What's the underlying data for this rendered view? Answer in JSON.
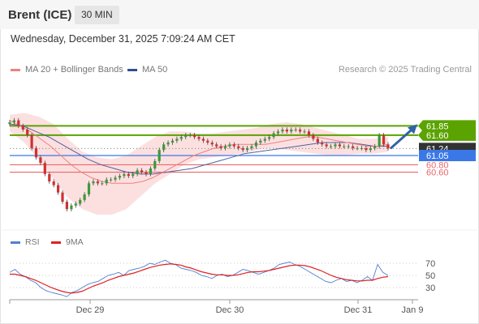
{
  "header": {
    "title": "Brent (ICE)",
    "interval": "30 MIN",
    "datetime": "Wednesday, December 31, 2025 7:09:24 AM CET"
  },
  "legend": {
    "ma20": "MA 20 + Bollinger Bands",
    "ma50": "MA 50",
    "source": "Research © 2025 Trading Central"
  },
  "rsi_legend": {
    "rsi": "RSI",
    "ma9": "9MA"
  },
  "colors": {
    "resistance": "#5aa300",
    "support": "#3b78e7",
    "minor_support": "#e8686a",
    "current": "#333333",
    "ma20": "#f08080",
    "ma50": "#5060a0",
    "bollinger": "#fbd6d6",
    "candle_up": "#3a9a3a",
    "candle_down": "#d03030",
    "arrow": "#2f62a8",
    "rsi": "#5080d0",
    "rsi_ma": "#e02020"
  },
  "chart_data": [
    {
      "type": "candlestick",
      "instrument": "Brent (ICE)",
      "interval": "30 MIN",
      "x_ticks": [
        "Dec 29",
        "Dec 30",
        "Dec 31",
        "Jan 9"
      ],
      "ylim": [
        59.3,
        62.8
      ],
      "levels": [
        {
          "label": "61.85",
          "value": 61.85,
          "kind": "resistance"
        },
        {
          "label": "61.60",
          "value": 61.6,
          "kind": "resistance"
        },
        {
          "label": "61.24",
          "value": 61.24,
          "kind": "current"
        },
        {
          "label": "61.05",
          "value": 61.05,
          "kind": "support"
        },
        {
          "label": "60.80",
          "value": 60.8,
          "kind": "minor_support"
        },
        {
          "label": "60.60",
          "value": 60.6,
          "kind": "minor_support"
        }
      ],
      "close": [
        61.95,
        62.0,
        61.85,
        61.75,
        61.6,
        61.25,
        61.0,
        60.85,
        60.55,
        60.35,
        60.25,
        60.05,
        59.8,
        59.6,
        59.7,
        59.75,
        59.85,
        60.0,
        60.3,
        60.35,
        60.3,
        60.3,
        60.4,
        60.4,
        60.45,
        60.5,
        60.55,
        60.5,
        60.55,
        60.65,
        60.6,
        60.55,
        60.7,
        60.9,
        61.2,
        61.35,
        61.4,
        61.45,
        61.5,
        61.55,
        61.6,
        61.6,
        61.55,
        61.5,
        61.45,
        61.4,
        61.35,
        61.3,
        61.25,
        61.3,
        61.35,
        61.3,
        61.25,
        61.2,
        61.25,
        61.3,
        61.4,
        61.45,
        61.5,
        61.55,
        61.65,
        61.7,
        61.75,
        61.7,
        61.75,
        61.75,
        61.7,
        61.7,
        61.6,
        61.5,
        61.4,
        61.35,
        61.3,
        61.3,
        61.35,
        61.3,
        61.3,
        61.3,
        61.25,
        61.25,
        61.25,
        61.2,
        61.25,
        61.3,
        61.6,
        61.35,
        61.24
      ],
      "ma20": [
        62.0,
        61.85,
        61.7,
        61.5,
        61.3,
        61.05,
        60.8,
        60.6,
        60.45,
        60.35,
        60.3,
        60.3,
        60.3,
        60.35,
        60.45,
        60.6,
        60.75,
        60.9,
        61.05,
        61.15,
        61.25,
        61.3,
        61.35,
        61.35,
        61.35,
        61.35,
        61.4,
        61.45,
        61.5,
        61.55,
        61.55,
        61.5,
        61.45,
        61.4,
        61.35,
        61.3,
        61.3,
        61.35
      ],
      "ma50": [
        61.9,
        61.85,
        61.7,
        61.55,
        61.35,
        61.15,
        60.95,
        60.8,
        60.7,
        60.6,
        60.55,
        60.55,
        60.6,
        60.65,
        60.7,
        60.8,
        60.9,
        61.0,
        61.1,
        61.15,
        61.2,
        61.25,
        61.3,
        61.35,
        61.4,
        61.4,
        61.4,
        61.35,
        61.3,
        61.3
      ],
      "bb_upper": [
        62.15,
        62.2,
        62.1,
        61.9,
        61.5,
        61.15,
        61.0,
        60.95,
        61.05,
        61.3,
        61.55,
        61.7,
        61.7,
        61.65,
        61.65,
        61.7,
        61.75,
        61.8,
        61.9,
        61.95,
        61.9,
        61.8,
        61.7,
        61.6,
        61.5,
        61.5,
        61.55
      ],
      "bb_lower": [
        61.7,
        61.4,
        60.95,
        60.4,
        59.9,
        59.6,
        59.45,
        59.45,
        59.6,
        59.95,
        60.3,
        60.55,
        60.8,
        60.95,
        61.0,
        61.05,
        61.1,
        61.2,
        61.25,
        61.2,
        61.15,
        61.1,
        61.05,
        61.05,
        61.1,
        61.1,
        61.15
      ],
      "forecast_arrow": {
        "from": 61.24,
        "to": 61.85
      }
    },
    {
      "type": "line",
      "title": "RSI",
      "y_ticks": [
        70,
        50,
        30
      ],
      "ylim": [
        10,
        90
      ],
      "series": [
        {
          "name": "RSI",
          "values": [
            55,
            60,
            52,
            48,
            42,
            38,
            30,
            25,
            22,
            20,
            18,
            15,
            22,
            25,
            30,
            35,
            38,
            40,
            45,
            50,
            52,
            55,
            50,
            58,
            60,
            62,
            65,
            70,
            68,
            72,
            75,
            70,
            68,
            62,
            60,
            58,
            55,
            50,
            48,
            45,
            50,
            52,
            48,
            50,
            55,
            60,
            58,
            55,
            52,
            55,
            58,
            62,
            68,
            70,
            72,
            68,
            65,
            60,
            55,
            50,
            45,
            40,
            38,
            42,
            45,
            40,
            42,
            38,
            42,
            48,
            42,
            68,
            55,
            50
          ]
        },
        {
          "name": "9MA",
          "values": [
            52,
            52,
            50,
            48,
            45,
            42,
            38,
            34,
            30,
            27,
            24,
            22,
            21,
            22,
            24,
            28,
            32,
            35,
            38,
            42,
            45,
            48,
            50,
            52,
            54,
            57,
            60,
            63,
            65,
            67,
            68,
            69,
            68,
            67,
            64,
            62,
            59,
            56,
            54,
            52,
            51,
            51,
            50,
            50,
            51,
            53,
            55,
            56,
            56,
            57,
            58,
            60,
            62,
            64,
            66,
            67,
            67,
            66,
            64,
            61,
            58,
            54,
            50,
            47,
            45,
            43,
            42,
            41,
            41,
            42,
            42,
            45,
            47,
            48
          ]
        }
      ]
    }
  ]
}
